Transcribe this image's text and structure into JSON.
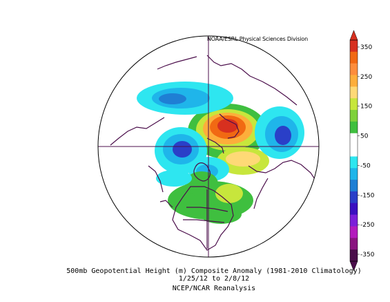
{
  "credit": "NOAA/ESRL Physical Sciences Division",
  "caption": {
    "line1": "500mb Geopotential Height (m) Composite Anomaly (1981-2010 Climatology)",
    "line2": "1/25/12  to 2/8/12",
    "line3": "NCEP/NCAR Reanalysis"
  },
  "colorbar": {
    "tick_labels": [
      "350",
      "250",
      "150",
      "50",
      "-50",
      "-150",
      "-250",
      "-350"
    ],
    "colors": [
      "#d7301f",
      "#f16913",
      "#fd8d3c",
      "#fdae3b",
      "#fed976",
      "#c7e63c",
      "#7fd13b",
      "#3fbf3f",
      "#ffffff",
      "#ffffff",
      "#2ee6f0",
      "#1fb5ea",
      "#1f7fd4",
      "#2a3fc8",
      "#3a10c0",
      "#7b1fd9",
      "#b31bbd",
      "#8a1580",
      "#4b0e4b"
    ],
    "range": [
      -350,
      350
    ]
  },
  "map": {
    "projection": "north polar stereographic",
    "variable": "500mb geopotential height anomaly",
    "anomaly_regions": [
      {
        "region": "Scandinavia / Barents Sea",
        "sign": "positive",
        "peak": 300
      },
      {
        "region": "Aleutians / North Pacific",
        "sign": "negative",
        "peak": -150
      },
      {
        "region": "Western Europe / Mediterranean",
        "sign": "positive",
        "peak": 100
      },
      {
        "region": "Siberia / East Asia",
        "sign": "negative",
        "peak": -150
      },
      {
        "region": "Western Canada",
        "sign": "negative",
        "peak": -100
      },
      {
        "region": "Eastern United States",
        "sign": "positive",
        "peak": 100
      },
      {
        "region": "Greenland / Northeast Canada",
        "sign": "negative",
        "peak": -50
      }
    ]
  }
}
